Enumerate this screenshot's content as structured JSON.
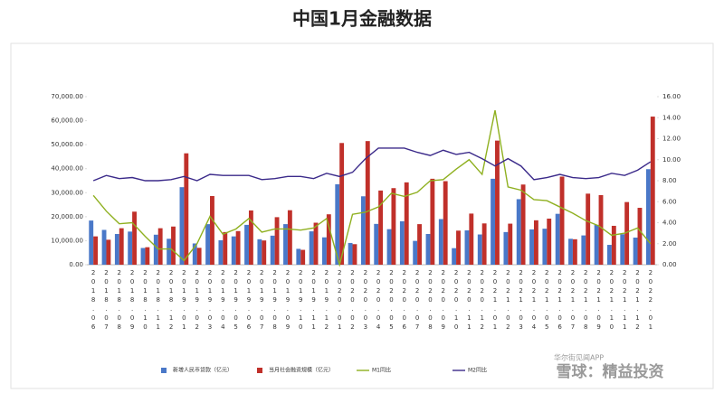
{
  "chart_data": {
    "type": "bar_line",
    "title": "中国1月金融数据",
    "categories": [
      "2018.06",
      "2018.07",
      "2018.08",
      "2018.09",
      "2018.10",
      "2018.11",
      "2018.12",
      "2019.01",
      "2019.02",
      "2019.03",
      "2019.04",
      "2019.05",
      "2019.06",
      "2019.07",
      "2019.08",
      "2019.09",
      "2019.10",
      "2019.11",
      "2019.12",
      "2020.01",
      "2020.02",
      "2020.03",
      "2020.04",
      "2020.05",
      "2020.06",
      "2020.07",
      "2020.08",
      "2020.09",
      "2020.10",
      "2020.11",
      "2020.12",
      "2021.01",
      "2021.02",
      "2021.03",
      "2021.04",
      "2021.05",
      "2021.06",
      "2021.07",
      "2021.08",
      "2021.09",
      "2021.10",
      "2021.11",
      "2021.12",
      "2022.01"
    ],
    "series": [
      {
        "name": "新增人民币贷款（亿元）",
        "color": "#4a78c8",
        "kind": "bar",
        "values": [
          18400,
          14500,
          12800,
          13800,
          6970,
          12500,
          10800,
          32300,
          8858,
          16900,
          10200,
          11800,
          16600,
          10600,
          12100,
          16900,
          6613,
          13900,
          11400,
          33500,
          9057,
          28500,
          17000,
          14800,
          18100,
          9927,
          12800,
          19000,
          6898,
          14300,
          12600,
          35800,
          13600,
          27300,
          14700,
          15000,
          21200,
          10800,
          12200,
          16600,
          8262,
          12700,
          11300,
          39800
        ]
      },
      {
        "name": "当月社会融资规模（亿元）",
        "color": "#c0302a",
        "kind": "bar",
        "values": [
          11800,
          10400,
          15200,
          22100,
          7288,
          15200,
          15900,
          46400,
          7030,
          28600,
          13600,
          14000,
          22600,
          10100,
          19800,
          22700,
          6189,
          17500,
          21000,
          50700,
          8554,
          51500,
          30900,
          31900,
          34300,
          16900,
          35800,
          34800,
          14200,
          21300,
          17200,
          51700,
          17100,
          33400,
          18500,
          19200,
          36700,
          10600,
          29600,
          29000,
          16200,
          26100,
          23700,
          61700
        ]
      },
      {
        "name": "M1同比",
        "color": "#8fb020",
        "kind": "line",
        "axis": "y2",
        "values": [
          6.6,
          5.1,
          3.9,
          4.0,
          2.7,
          1.5,
          1.5,
          0.4,
          2.0,
          4.6,
          2.9,
          3.4,
          4.4,
          3.1,
          3.4,
          3.4,
          3.3,
          3.5,
          4.4,
          0.0,
          4.8,
          5.0,
          5.5,
          6.8,
          6.5,
          6.9,
          8.0,
          8.1,
          9.1,
          10.0,
          8.6,
          14.7,
          7.4,
          7.1,
          6.2,
          6.1,
          5.5,
          4.9,
          4.2,
          3.7,
          2.8,
          3.0,
          3.5,
          2.0
        ]
      },
      {
        "name": "M2同比",
        "color": "#3b2a8a",
        "kind": "line",
        "axis": "y2",
        "values": [
          8.0,
          8.5,
          8.2,
          8.3,
          8.0,
          8.0,
          8.1,
          8.4,
          8.0,
          8.6,
          8.5,
          8.5,
          8.5,
          8.1,
          8.2,
          8.4,
          8.4,
          8.2,
          8.7,
          8.4,
          8.8,
          10.1,
          11.1,
          11.1,
          11.1,
          10.7,
          10.4,
          10.9,
          10.5,
          10.7,
          10.1,
          9.4,
          10.1,
          9.4,
          8.1,
          8.3,
          8.6,
          8.3,
          8.2,
          8.3,
          8.7,
          8.5,
          9.0,
          9.8
        ]
      }
    ],
    "ylim": [
      0,
      70000
    ],
    "yticks": [
      {
        "value": 0,
        "label": "0.00"
      },
      {
        "value": 10000,
        "label": "10,000.00"
      },
      {
        "value": 20000,
        "label": "20,000.00"
      },
      {
        "value": 30000,
        "label": "30,000.00"
      },
      {
        "value": 40000,
        "label": "40,000.00"
      },
      {
        "value": 50000,
        "label": "50,000.00"
      },
      {
        "value": 60000,
        "label": "60,000.00"
      },
      {
        "value": 70000,
        "label": "70,000.00"
      }
    ],
    "y2lim": [
      0,
      16
    ],
    "y2ticks": [
      {
        "value": 0,
        "label": "0.00"
      },
      {
        "value": 2,
        "label": "2.00"
      },
      {
        "value": 4,
        "label": "4.00"
      },
      {
        "value": 6,
        "label": "6.00"
      },
      {
        "value": 8,
        "label": "8.00"
      },
      {
        "value": 10,
        "label": "10.00"
      },
      {
        "value": 12,
        "label": "12.00"
      },
      {
        "value": 14,
        "label": "14.00"
      },
      {
        "value": 16,
        "label": "16.00"
      }
    ],
    "grid": false,
    "legend": "bottom",
    "source": "华尔街见闻APP",
    "watermark": "雪球：精益投资"
  }
}
